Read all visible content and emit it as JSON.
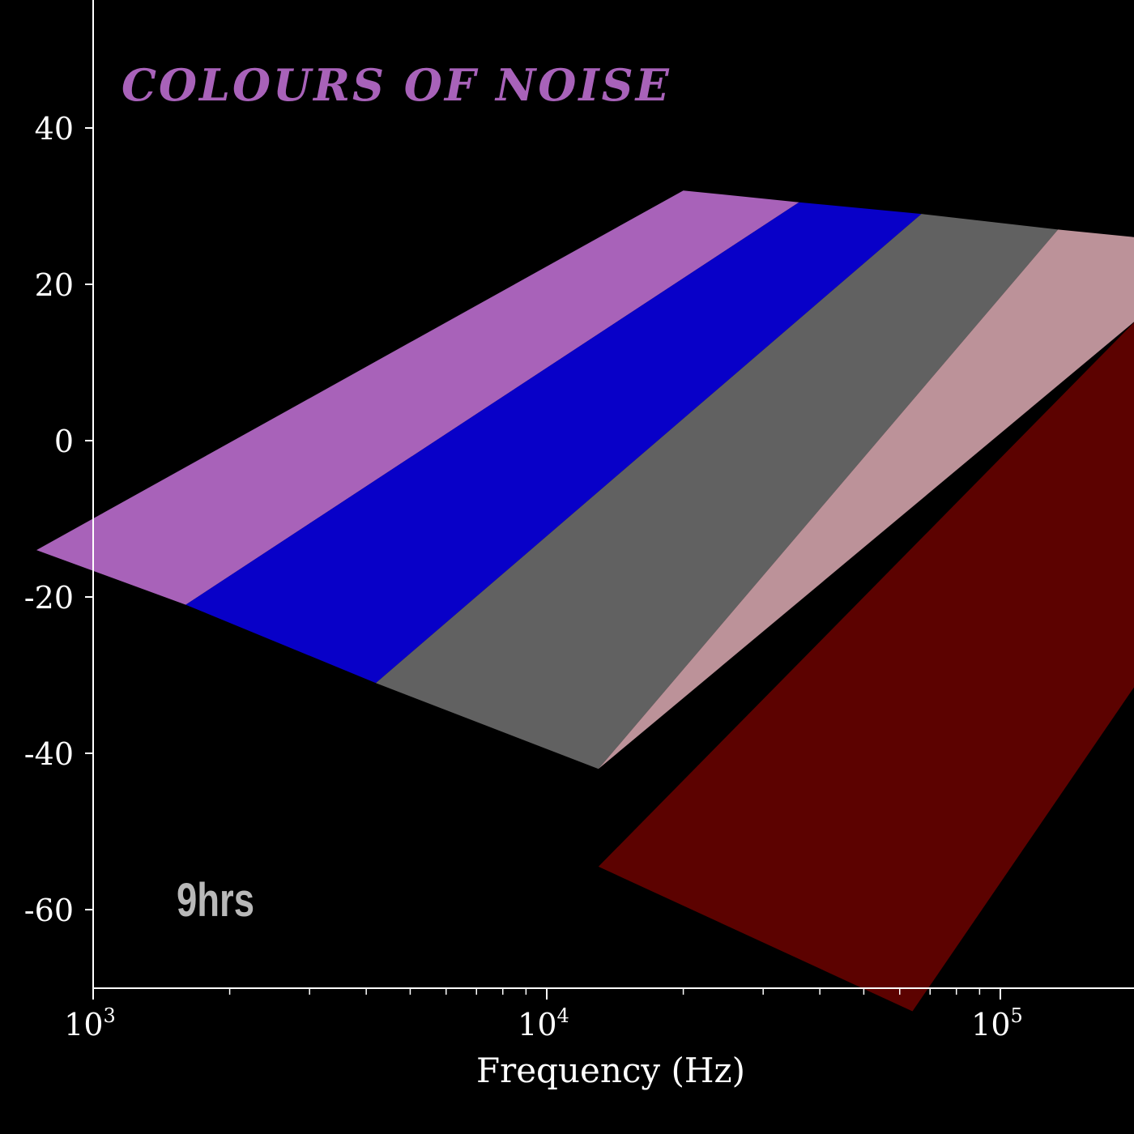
{
  "chart_data": {
    "type": "area",
    "title": "COLOURS OF NOISE",
    "xlabel": "Frequency (Hz)",
    "ylabel": "",
    "x_scale": "log",
    "xlim": [
      1000,
      200000
    ],
    "ylim": [
      -70,
      55
    ],
    "x_ticks": [
      {
        "value": 1000,
        "label_base": "10",
        "label_exp": "3"
      },
      {
        "value": 10000,
        "label_base": "10",
        "label_exp": "4"
      },
      {
        "value": 100000,
        "label_base": "10",
        "label_exp": "5"
      }
    ],
    "y_ticks": [
      {
        "value": 40,
        "label": "40"
      },
      {
        "value": 20,
        "label": "20"
      },
      {
        "value": 0,
        "label": "0"
      },
      {
        "value": -20,
        "label": "-20"
      },
      {
        "value": -40,
        "label": "-40"
      },
      {
        "value": -60,
        "label": "-60"
      }
    ],
    "bands": [
      {
        "color": "#a862b9",
        "polygon": [
          [
            20000,
            32
          ],
          [
            36000,
            30.5
          ],
          [
            1600,
            -21
          ],
          [
            750,
            -14
          ]
        ]
      },
      {
        "color": "#0800c8",
        "polygon": [
          [
            36000,
            30.5
          ],
          [
            67000,
            29
          ],
          [
            4200,
            -31
          ],
          [
            1600,
            -21
          ]
        ]
      },
      {
        "color": "#616161",
        "polygon": [
          [
            67000,
            29
          ],
          [
            134000,
            27
          ],
          [
            13000,
            -42
          ],
          [
            4200,
            -31
          ]
        ]
      },
      {
        "color": "#bc9299",
        "polygon": [
          [
            134000,
            27
          ],
          [
            200000,
            26
          ],
          [
            200000,
            15.5
          ],
          [
            13000,
            -42
          ]
        ]
      },
      {
        "color": "#5c0200",
        "polygon": [
          [
            200000,
            15.5
          ],
          [
            200000,
            -31
          ],
          [
            64000,
            -73
          ],
          [
            13000,
            -54.5
          ]
        ]
      }
    ],
    "grid": false,
    "legend": "none",
    "annotation": "9hrs"
  }
}
